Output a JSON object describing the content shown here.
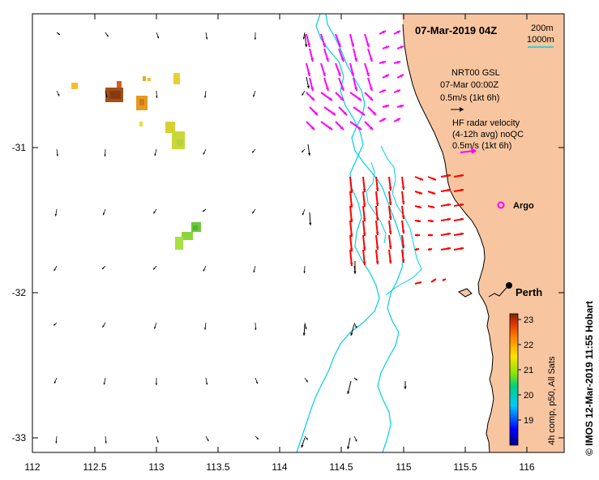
{
  "title": "07-Mar-2019 04Z",
  "scale": {
    "distance_1": "200m",
    "distance_2": "1000m"
  },
  "legend": {
    "nrt_title": "NRT00 GSL",
    "nrt_time": "07-Mar 00:00Z",
    "nrt_scale": "0.5m/s (1kt 6h)",
    "hf_title": "HF radar velocity",
    "hf_sub": "(4-12h avg) noQC",
    "hf_scale": "0.5m/s (1kt 6h)",
    "argo": "Argo"
  },
  "city": "Perth",
  "credit": "© IMOS 12-Mar-2019 11:55 Hobart",
  "colorbar": {
    "label": "4h comp, p50, All Sats",
    "ticks": [
      "19",
      "20",
      "21",
      "22",
      "23"
    ]
  },
  "axes": {
    "x_ticks": [
      "112",
      "112.5",
      "113",
      "113.5",
      "114",
      "114.5",
      "115",
      "115.5",
      "116"
    ],
    "y_ticks": [
      "-31",
      "-32",
      "-33"
    ]
  },
  "colors": {
    "land": "#f7c59f",
    "bathy": "#00d0e0",
    "hf_arrow": "#ff00ff",
    "sat_arrow": "#ff0000",
    "frame": "#000000"
  }
}
